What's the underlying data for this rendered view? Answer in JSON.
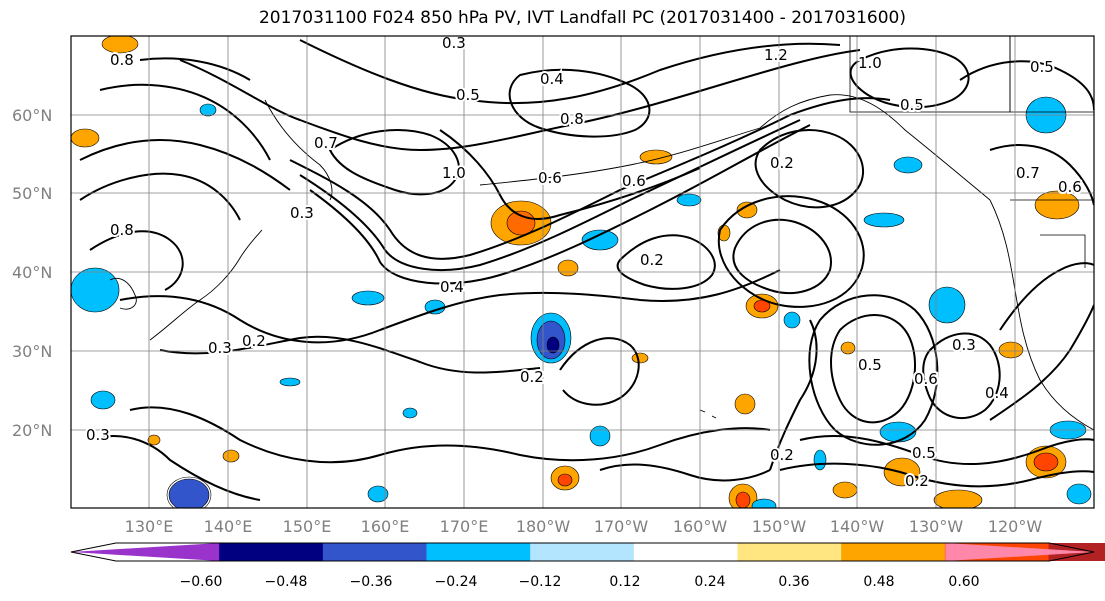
{
  "title": "2017031100 F024 850 hPa PV, IVT Landfall PC (2017031400 - 2017031600)",
  "lat_labels": [
    "60°N",
    "50°N",
    "40°N",
    "30°N",
    "20°N"
  ],
  "lon_labels": [
    "130°E",
    "140°E",
    "150°E",
    "160°E",
    "170°E",
    "180°W",
    "170°W",
    "160°W",
    "150°W",
    "140°W",
    "130°W",
    "120°W"
  ],
  "colorbar": {
    "colors": [
      "#9933cc",
      "#000080",
      "#3355cc",
      "#00bfff",
      "#b3e5ff",
      "#ffffff",
      "#ffe680",
      "#ffa500",
      "#ff4500",
      "#b22222",
      "#ff88aa"
    ],
    "ticks": [
      "−0.60",
      "−0.48",
      "−0.36",
      "−0.24",
      "−0.12",
      "0.12",
      "0.24",
      "0.36",
      "0.48",
      "0.60"
    ]
  },
  "contour_labels": [
    "0.3",
    "0.4",
    "0.5",
    "0.6",
    "0.7",
    "0.8",
    "1.0",
    "1.2",
    "0.2",
    "0.3",
    "0.2",
    "0.4",
    "0.2",
    "0.3",
    "0.6",
    "0.5",
    "0.4",
    "0.3",
    "0.2",
    "0.5",
    "0.2",
    "0.2",
    "0.3",
    "0.6",
    "0.8",
    "1.0",
    "0.5",
    "0.7",
    "0.6",
    "0.5",
    "0.8"
  ]
}
